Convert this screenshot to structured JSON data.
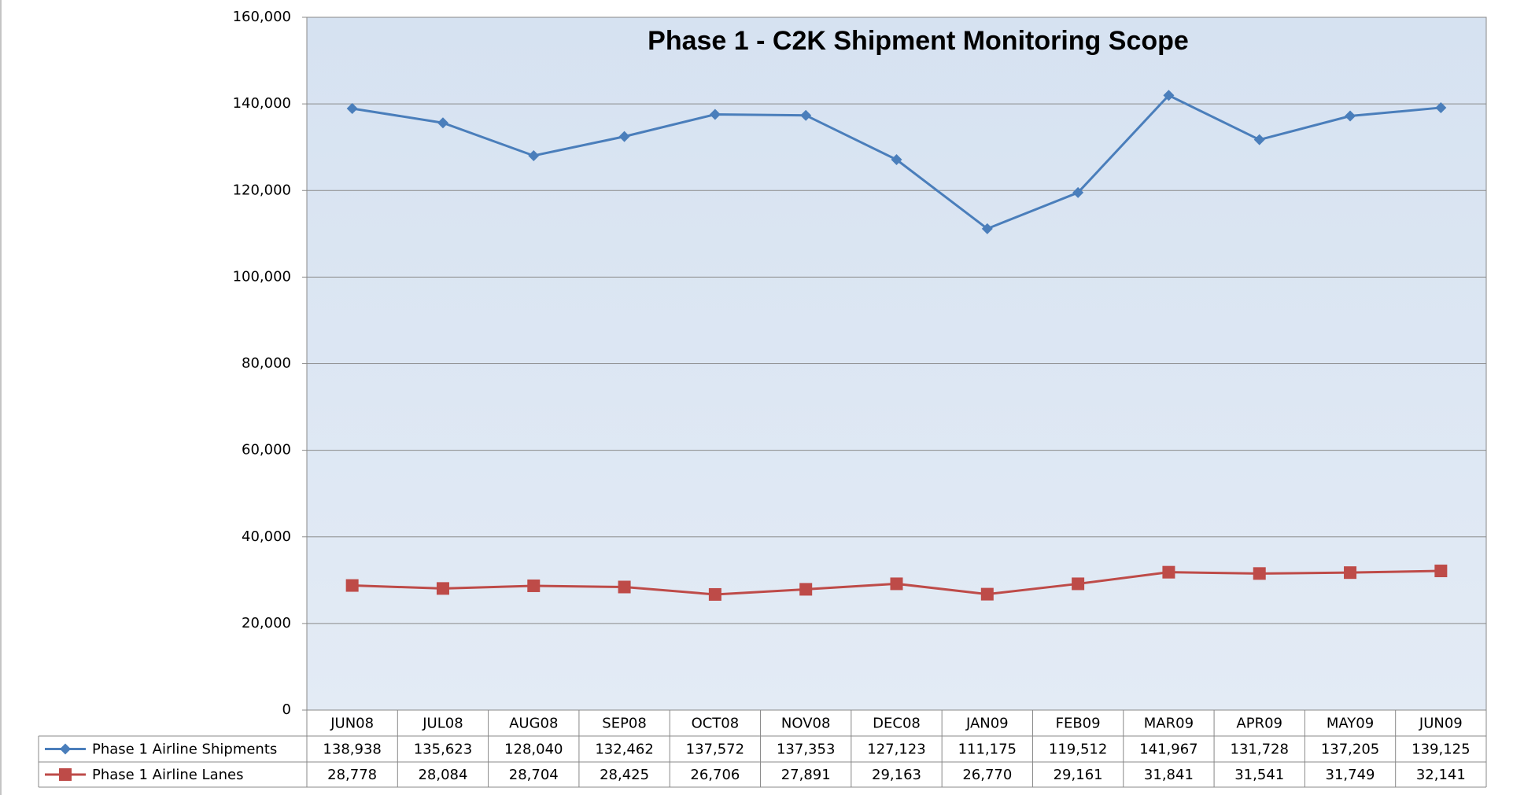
{
  "chart_data": {
    "type": "line",
    "title": "Phase 1 - C2K Shipment Monitoring Scope",
    "categories": [
      "JUN08",
      "JUL08",
      "AUG08",
      "SEP08",
      "OCT08",
      "NOV08",
      "DEC08",
      "JAN09",
      "FEB09",
      "MAR09",
      "APR09",
      "MAY09",
      "JUN09"
    ],
    "series": [
      {
        "name": "Phase 1 Airline Shipments",
        "color": "#4a7ebb",
        "marker": "diamond",
        "values": [
          138938,
          135623,
          128040,
          132462,
          137572,
          137353,
          127123,
          111175,
          119512,
          141967,
          131728,
          137205,
          139125
        ],
        "value_labels": [
          "138,938",
          "135,623",
          "128,040",
          "132,462",
          "137,572",
          "137,353",
          "127,123",
          "111,175",
          "119,512",
          "141,967",
          "131,728",
          "137,205",
          "139,125"
        ]
      },
      {
        "name": "Phase 1 Airline Lanes",
        "color": "#be4b48",
        "marker": "square",
        "values": [
          28778,
          28084,
          28704,
          28425,
          26706,
          27891,
          29163,
          26770,
          29161,
          31841,
          31541,
          31749,
          32141
        ],
        "value_labels": [
          "28,778",
          "28,084",
          "28,704",
          "28,425",
          "26,706",
          "27,891",
          "29,163",
          "26,770",
          "29,161",
          "31,841",
          "31,541",
          "31,749",
          "32,141"
        ]
      }
    ],
    "ylim": [
      0,
      160000
    ],
    "yticks": [
      0,
      {
        "value": 20000,
        "label": "20,000"
      },
      {
        "value": 40000,
        "label": "40,000"
      },
      {
        "value": 60000,
        "label": "60,000"
      },
      {
        "value": 80000,
        "label": "80,000"
      },
      {
        "value": 100000,
        "label": "100,000"
      },
      {
        "value": 120000,
        "label": "120,000"
      },
      {
        "value": 140000,
        "label": "140,000"
      },
      {
        "value": 160000,
        "label": "160,000"
      }
    ],
    "grid": true,
    "legend": "data-table"
  }
}
